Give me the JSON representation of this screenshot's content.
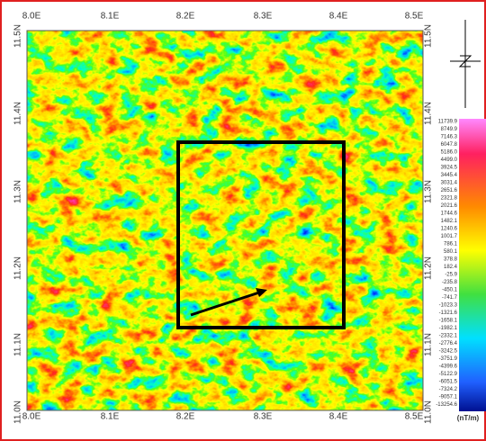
{
  "map": {
    "x_labels_top": [
      "8.0E",
      "8.1E",
      "8.2E",
      "8.3E",
      "8.4E",
      "8.5E"
    ],
    "x_labels_bottom": [
      "8.0E",
      "8.1E",
      "8.2E",
      "8.3E",
      "8.4E",
      "8.5E"
    ],
    "y_labels_left": [
      "11.5N",
      "11.4N",
      "11.3N",
      "11.2N",
      "11.1N",
      "11.0N"
    ],
    "y_labels_right": [
      "11.5N",
      "11.4N",
      "11.3N",
      "11.2N",
      "11.1N",
      "11.0N"
    ],
    "legend": {
      "labels": [
        "11739.9",
        "8749.9",
        "7146.3",
        "6047.8",
        "5186.0",
        "4499.0",
        "3924.5",
        "3445.4",
        "3031.4",
        "2651.6",
        "2321.8",
        "2021.6",
        "1744.6",
        "1482.1",
        "1240.6",
        "1001.7",
        "786.1",
        "580.1",
        "378.8",
        "182.4",
        "-25.9",
        "-235.8",
        "-450.1",
        "-741.7",
        "-1023.3",
        "-1321.6",
        "-1658.1",
        "-1982.1",
        "-2332.1",
        "-2776.4",
        "-3242.5",
        "-3751.9",
        "-4399.6",
        "-5122.9",
        "-6051.5",
        "-7324.2",
        "-9057.1",
        "-13254.6"
      ],
      "unit": "(nT/m)"
    }
  }
}
